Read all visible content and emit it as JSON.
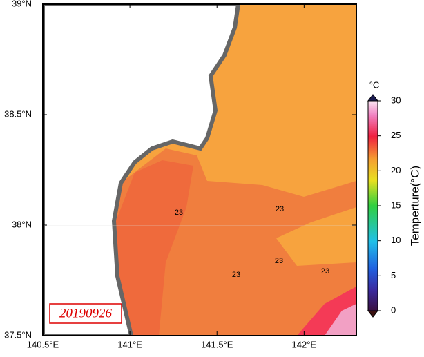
{
  "map": {
    "date": "20190926",
    "xticks": [
      {
        "value": 140.5,
        "label": "140.5°E"
      },
      {
        "value": 141,
        "label": "141°E"
      },
      {
        "value": 141.5,
        "label": "141.5°E"
      },
      {
        "value": 142,
        "label": "142°E"
      }
    ],
    "xlim": [
      140.5,
      142.3
    ],
    "yticks": [
      {
        "value": 37.5,
        "label": "37.5°N"
      },
      {
        "value": 38,
        "label": "38°N"
      },
      {
        "value": 38.5,
        "label": "38.5°N"
      },
      {
        "value": 39,
        "label": "39°N"
      }
    ],
    "ylim": [
      37.5,
      39
    ],
    "contour_labels": [
      "23",
      "23",
      "23",
      "23",
      "23"
    ],
    "colorbar": {
      "unit": "°C",
      "label": "Temperture(°C)",
      "lim": [
        0,
        30
      ],
      "ticks": [
        0,
        5,
        10,
        15,
        20,
        25,
        30
      ]
    }
  }
}
